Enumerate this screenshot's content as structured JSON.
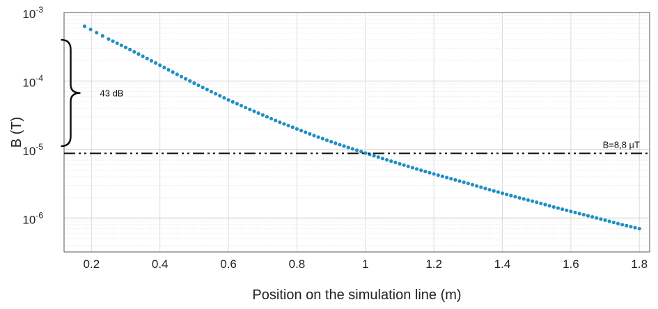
{
  "chart_data": {
    "type": "scatter",
    "title": "",
    "xlabel": "Position on the simulation line (m)",
    "ylabel": "B (T)",
    "xlim": [
      0.12,
      1.83
    ],
    "ylim": [
      3.2e-07,
      0.001
    ],
    "yscale": "log",
    "grid": true,
    "marker_color": "#1f8fc4",
    "xticks": [
      {
        "value": 0.2,
        "label": "0.2"
      },
      {
        "value": 0.4,
        "label": "0.4"
      },
      {
        "value": 0.6,
        "label": "0.6"
      },
      {
        "value": 0.8,
        "label": "0.8"
      },
      {
        "value": 1.0,
        "label": "1"
      },
      {
        "value": 1.2,
        "label": "1.2"
      },
      {
        "value": 1.4,
        "label": "1.4"
      },
      {
        "value": 1.6,
        "label": "1.6"
      },
      {
        "value": 1.8,
        "label": "1.8"
      }
    ],
    "yticks": [
      {
        "value": 0.001,
        "base": "10",
        "exp": "-3"
      },
      {
        "value": 0.0001,
        "base": "10",
        "exp": "-4"
      },
      {
        "value": 1e-05,
        "base": "10",
        "exp": "-5"
      },
      {
        "value": 1e-06,
        "base": "10",
        "exp": "-6"
      }
    ],
    "series": [
      {
        "x": [
          0.18,
          0.25,
          0.3,
          0.35,
          0.4,
          0.45,
          0.5,
          0.55,
          0.6,
          0.65,
          0.7,
          0.75,
          0.8,
          0.85,
          0.9,
          0.95,
          1.0,
          1.05,
          1.1,
          1.15,
          1.2,
          1.25,
          1.3,
          1.35,
          1.4,
          1.45,
          1.5,
          1.55,
          1.6,
          1.65,
          1.7,
          1.75,
          1.8
        ],
        "y": [
          0.00063,
          0.00041,
          0.00031,
          0.00023,
          0.00017,
          0.000125,
          9.3e-05,
          7e-05,
          5.3e-05,
          4.1e-05,
          3.2e-05,
          2.5e-05,
          2e-05,
          1.6e-05,
          1.3e-05,
          1.07e-05,
          8.9e-06,
          7.4e-06,
          6.2e-06,
          5.2e-06,
          4.4e-06,
          3.75e-06,
          3.2e-06,
          2.7e-06,
          2.3e-06,
          1.97e-06,
          1.7e-06,
          1.45e-06,
          1.25e-06,
          1.08e-06,
          9.3e-07,
          8e-07,
          7e-07
        ]
      }
    ],
    "reference_line": {
      "y": 8.8e-06,
      "label": "B=8,8 µT",
      "style": "dash-dot"
    },
    "annotations": [
      {
        "text": "43 dB",
        "y_top": 0.0004,
        "y_bottom": 1.12e-05,
        "x": 0.18
      }
    ]
  }
}
